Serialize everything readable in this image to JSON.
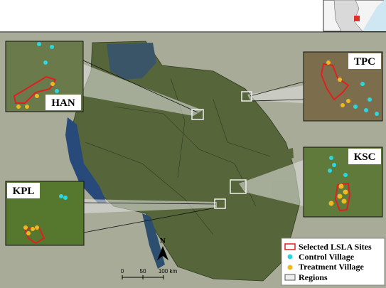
{
  "insets": [
    {
      "label": "HAN"
    },
    {
      "label": "TPC"
    },
    {
      "label": "KSC"
    },
    {
      "label": "KPL"
    }
  ],
  "north": "N",
  "scale": [
    "0",
    "50",
    "100 km"
  ],
  "legend": [
    {
      "label": "Selected LSLA Sites"
    },
    {
      "label": "Control Village"
    },
    {
      "label": "Treatment Village"
    },
    {
      "label": "Regions"
    }
  ]
}
